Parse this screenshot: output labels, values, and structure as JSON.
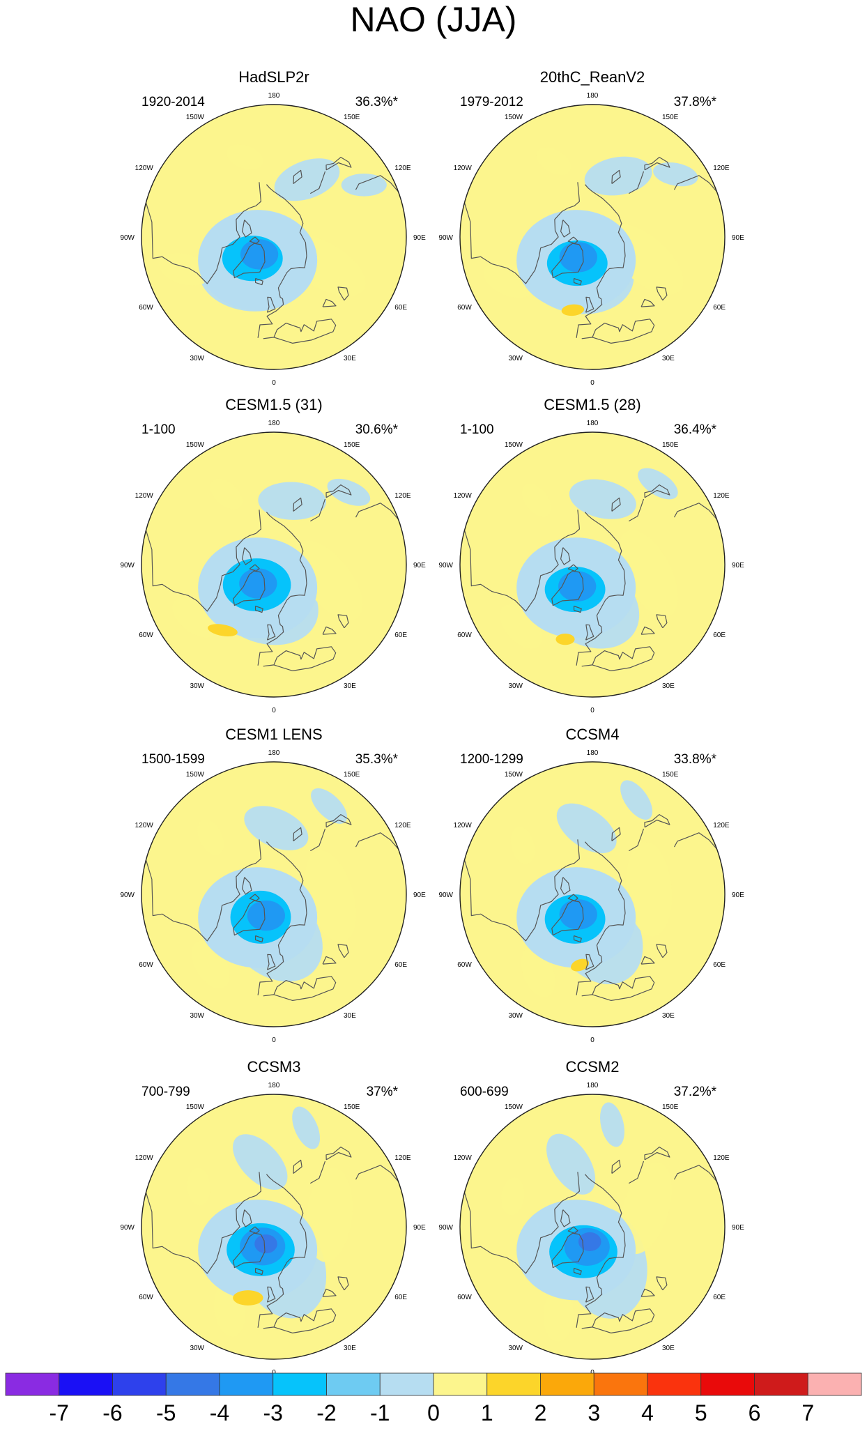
{
  "chart_data": {
    "type": "polar-stereographic-contour-map",
    "title": "NAO (JJA)",
    "longitude_labels": [
      "180",
      "150E",
      "120E",
      "90E",
      "60E",
      "30E",
      "0",
      "30W",
      "60W",
      "90W",
      "120W",
      "150W"
    ],
    "panels": [
      {
        "name": "HadSLP2r",
        "period": "1920-2014",
        "variance": "36.3%*",
        "features": [
          {
            "kind": "neg",
            "lat": 74,
            "lon": -45,
            "rx": 16,
            "ry": 12,
            "rot": 0,
            "level": -2
          },
          {
            "kind": "neg",
            "lat": 78,
            "lon": -40,
            "rx": 10,
            "ry": 8,
            "rot": 0,
            "level": -3
          }
        ]
      },
      {
        "name": "20thC_ReanV2",
        "period": "1979-2012",
        "variance": "37.8%*",
        "features": [
          {
            "kind": "neg",
            "lat": 74,
            "lon": -30,
            "rx": 16,
            "ry": 12,
            "rot": 0,
            "level": -2
          },
          {
            "kind": "neg",
            "lat": 77,
            "lon": -35,
            "rx": 10,
            "ry": 8,
            "rot": 0,
            "level": -3
          },
          {
            "kind": "pos",
            "lat": 50,
            "lon": -15,
            "rx": 6,
            "ry": 3,
            "rot": -5,
            "level": 1
          }
        ]
      },
      {
        "name": "CESM1.5 (31)",
        "period": "1-100",
        "variance": "30.6%*",
        "features": [
          {
            "kind": "neg",
            "lat": 76,
            "lon": -40,
            "rx": 18,
            "ry": 14,
            "rot": 0,
            "level": -2
          },
          {
            "kind": "neg",
            "lat": 77,
            "lon": -40,
            "rx": 10,
            "ry": 8,
            "rot": 0,
            "level": -3
          },
          {
            "kind": "pos",
            "lat": 46,
            "lon": -38,
            "rx": 8,
            "ry": 3,
            "rot": 10,
            "level": 1
          }
        ]
      },
      {
        "name": "CESM1.5 (28)",
        "period": "1-100",
        "variance": "36.4%*",
        "features": [
          {
            "kind": "neg",
            "lat": 74,
            "lon": -35,
            "rx": 16,
            "ry": 12,
            "rot": 0,
            "level": -2
          },
          {
            "kind": "neg",
            "lat": 76,
            "lon": -35,
            "rx": 10,
            "ry": 8,
            "rot": 0,
            "level": -3
          },
          {
            "kind": "pos",
            "lat": 48,
            "lon": -20,
            "rx": 5,
            "ry": 3,
            "rot": 0,
            "level": 1
          }
        ]
      },
      {
        "name": "CESM1 LENS",
        "period": "1500-1599",
        "variance": "35.3%*",
        "features": [
          {
            "kind": "neg",
            "lat": 76,
            "lon": -30,
            "rx": 16,
            "ry": 14,
            "rot": 0,
            "level": -2
          },
          {
            "kind": "neg",
            "lat": 78,
            "lon": -20,
            "rx": 10,
            "ry": 8,
            "rot": 0,
            "level": -3
          }
        ]
      },
      {
        "name": "CCSM4",
        "period": "1200-1299",
        "variance": "33.8%*",
        "features": [
          {
            "kind": "neg",
            "lat": 74,
            "lon": -35,
            "rx": 16,
            "ry": 13,
            "rot": 0,
            "level": -2
          },
          {
            "kind": "neg",
            "lat": 77,
            "lon": -35,
            "rx": 10,
            "ry": 8,
            "rot": 0,
            "level": -3
          },
          {
            "kind": "pos",
            "lat": 52,
            "lon": -10,
            "rx": 5,
            "ry": 3,
            "rot": -20,
            "level": 1
          }
        ]
      },
      {
        "name": "CCSM3",
        "period": "700-799",
        "variance": "37%*",
        "features": [
          {
            "kind": "neg",
            "lat": 76,
            "lon": -30,
            "rx": 18,
            "ry": 14,
            "rot": 0,
            "level": -2
          },
          {
            "kind": "neg",
            "lat": 78,
            "lon": -30,
            "rx": 12,
            "ry": 10,
            "rot": 0,
            "level": -3
          },
          {
            "kind": "neg",
            "lat": 80,
            "lon": -25,
            "rx": 6,
            "ry": 5,
            "rot": 0,
            "level": -4
          },
          {
            "kind": "pos",
            "lat": 50,
            "lon": -20,
            "rx": 8,
            "ry": 4,
            "rot": 0,
            "level": 1
          }
        ]
      },
      {
        "name": "CCSM2",
        "period": "600-699",
        "variance": "37.2%*",
        "features": [
          {
            "kind": "neg",
            "lat": 76,
            "lon": -20,
            "rx": 18,
            "ry": 14,
            "rot": 0,
            "level": -2
          },
          {
            "kind": "neg",
            "lat": 79,
            "lon": -15,
            "rx": 12,
            "ry": 10,
            "rot": 0,
            "level": -3
          },
          {
            "kind": "neg",
            "lat": 82,
            "lon": -10,
            "rx": 6,
            "ry": 5,
            "rot": 0,
            "level": -4
          }
        ]
      }
    ],
    "colorbar": {
      "labels": [
        "-7",
        "-6",
        "-5",
        "-4",
        "-3",
        "-2",
        "-1",
        "0",
        "1",
        "2",
        "3",
        "4",
        "5",
        "6",
        "7"
      ],
      "colors": [
        "#8a2be2",
        "#1a10f5",
        "#2e41ec",
        "#3578e6",
        "#1f99f3",
        "#06c3fb",
        "#6ecbf2",
        "#b6ddf1",
        "#fcf58d",
        "#fcd52a",
        "#fba80a",
        "#fa750d",
        "#fa330d",
        "#e90a0a",
        "#cf1b1b",
        "#fbb1b1"
      ]
    }
  }
}
